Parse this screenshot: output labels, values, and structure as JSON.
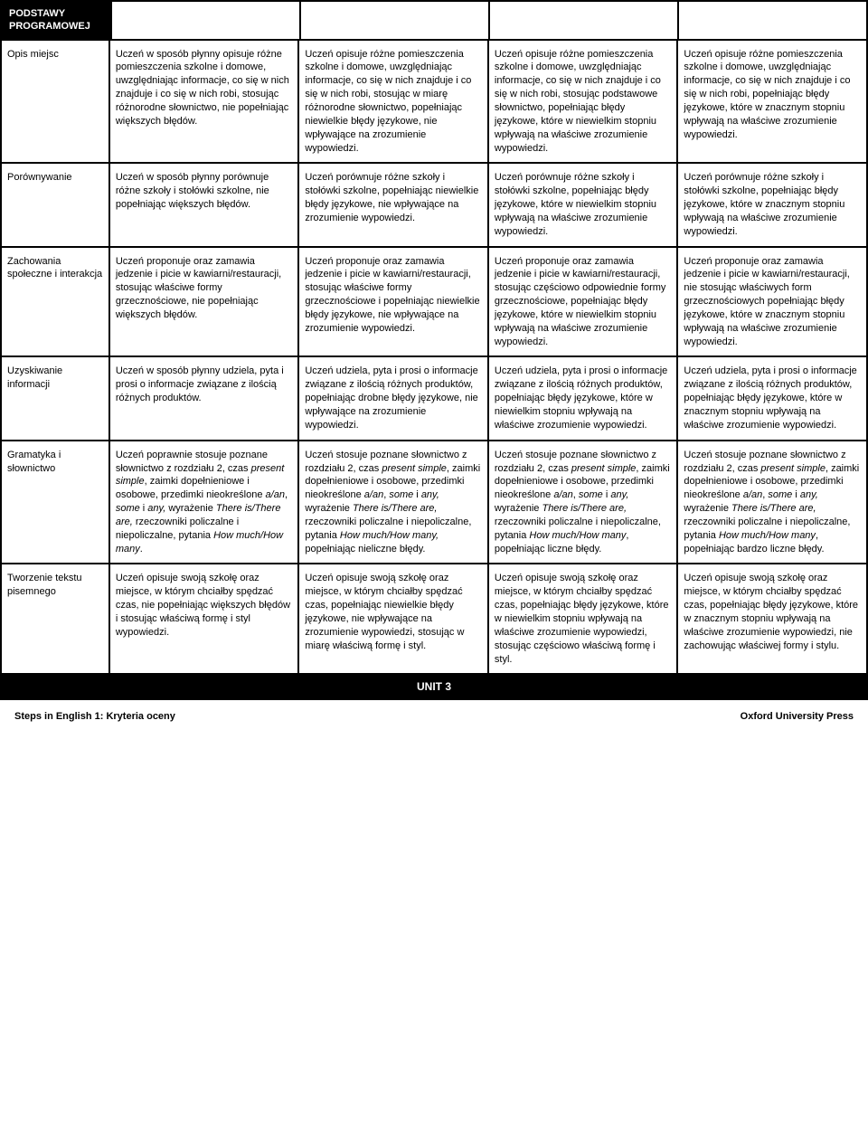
{
  "header": {
    "title_line1": "PODSTAWY",
    "title_line2": "PROGRAMOWEJ"
  },
  "rows": [
    {
      "label": "Opis miejsc",
      "cells": [
        "Uczeń w sposób płynny opisuje różne pomieszczenia szkolne i domowe, uwzględniając informacje, co się w nich znajduje i co się w nich robi, stosując różnorodne słownictwo, nie popełniając większych błędów.",
        "Uczeń opisuje różne pomieszczenia szkolne i domowe, uwzględniając informacje, co się w nich znajduje i co się w nich robi, stosując w miarę różnorodne słownictwo, popełniając niewielkie błędy językowe, nie wpływające na zrozumienie wypowiedzi.",
        "Uczeń opisuje różne pomieszczenia szkolne i domowe, uwzględniając informacje, co się w nich znajduje i co się w nich robi, stosując podstawowe słownictwo, popełniając błędy językowe, które w niewielkim stopniu wpływają na właściwe zrozumienie wypowiedzi.",
        "Uczeń opisuje różne pomieszczenia szkolne i domowe, uwzględniając informacje, co się w nich znajduje i co się w nich robi, popełniając błędy językowe, które w znacznym stopniu wpływają na właściwe zrozumienie wypowiedzi."
      ]
    },
    {
      "label": "Porównywanie",
      "cells": [
        "Uczeń w sposób płynny porównuje różne szkoły i stołówki szkolne, nie popełniając większych błędów.",
        "Uczeń porównuje różne szkoły i stołówki szkolne, popełniając niewielkie błędy językowe, nie wpływające na zrozumienie wypowiedzi.",
        "Uczeń porównuje różne szkoły i stołówki szkolne, popełniając błędy językowe, które w niewielkim stopniu wpływają na właściwe zrozumienie wypowiedzi.",
        "Uczeń porównuje różne szkoły i stołówki szkolne, popełniając błędy językowe, które w znacznym stopniu wpływają na właściwe zrozumienie wypowiedzi."
      ]
    },
    {
      "label": "Zachowania społeczne i interakcja",
      "cells": [
        "Uczeń proponuje oraz zamawia jedzenie i picie w kawiarni/restauracji, stosując właściwe formy grzecznościowe, nie popełniając większych błędów.",
        "Uczeń proponuje oraz zamawia jedzenie i picie w kawiarni/restauracji, stosując właściwe formy grzecznościowe i popełniając niewielkie błędy językowe, nie wpływające na zrozumienie wypowiedzi.",
        "Uczeń proponuje oraz zamawia jedzenie i picie w kawiarni/restauracji, stosując częściowo odpowiednie formy grzecznościowe, popełniając błędy językowe, które w niewielkim stopniu wpływają na właściwe zrozumienie wypowiedzi.",
        "Uczeń proponuje oraz zamawia jedzenie i picie w kawiarni/restauracji, nie stosując właściwych form grzecznościowych popełniając błędy językowe, które w znacznym stopniu wpływają na właściwe zrozumienie wypowiedzi."
      ]
    },
    {
      "label": "Uzyskiwanie informacji",
      "cells": [
        "Uczeń w sposób płynny udziela, pyta i prosi o informacje związane z ilością różnych produktów.",
        "Uczeń udziela, pyta i prosi o informacje związane z ilością różnych produktów, popełniając drobne błędy językowe, nie wpływające na zrozumienie wypowiedzi.",
        "Uczeń udziela, pyta i prosi o informacje związane z ilością różnych produktów, popełniając błędy językowe, które w niewielkim stopniu wpływają na właściwe zrozumienie wypowiedzi.",
        "Uczeń udziela, pyta i prosi o informacje związane z ilością różnych produktów, popełniając błędy językowe, które w znacznym stopniu wpływają na właściwe zrozumienie wypowiedzi."
      ]
    },
    {
      "label": "Gramatyka i słownictwo",
      "cells": [
        "Uczeń poprawnie stosuje poznane słownictwo z rozdziału 2, czas <i>present simple</i>, zaimki dopełnieniowe i osobowe, przedimki nieokreślone <i>a/an</i>, <i>some</i> i <i>any,</i> wyrażenie <i>There is/There are,</i> rzeczowniki policzalne i niepoliczalne, pytania <i>How much/How many</i>.",
        "Uczeń stosuje poznane słownictwo z rozdziału 2, czas <i>present simple</i>, zaimki dopełnieniowe i osobowe, przedimki nieokreślone <i>a/an</i>, <i>some</i> i <i>any,</i> wyrażenie <i>There is/There are,</i> rzeczowniki policzalne i niepoliczalne, pytania <i>How much/How many,</i> popełniając nieliczne błędy.",
        "Uczeń stosuje poznane słownictwo z rozdziału 2, czas <i>present simple</i>, zaimki dopełnieniowe i osobowe, przedimki nieokreślone <i>a/an</i>, <i>some</i> i <i>any,</i> wyrażenie <i>There is/There are,</i> rzeczowniki policzalne i niepoliczalne, pytania <i>How much/How many</i>, popełniając liczne błędy.",
        "Uczeń stosuje poznane słownictwo z rozdziału 2, czas <i>present simple</i>, zaimki dopełnieniowe i osobowe, przedimki nieokreślone <i>a/an</i>, <i>some</i> i <i>any,</i> wyrażenie <i>There is/There are,</i> rzeczowniki policzalne i niepoliczalne, pytania <i>How much/How many</i>, popełniając bardzo liczne błędy."
      ]
    },
    {
      "label": "Tworzenie tekstu pisemnego",
      "cells": [
        "Uczeń opisuje swoją szkołę oraz miejsce, w którym chciałby spędzać czas, nie popełniając większych błędów i stosując właściwą formę i styl wypowiedzi.",
        "Uczeń opisuje swoją szkołę oraz miejsce, w którym chciałby spędzać czas, popełniając niewielkie błędy językowe, nie wpływające na zrozumienie wypowiedzi, stosując w miarę właściwą formę i styl.",
        "Uczeń opisuje swoją szkołę oraz miejsce, w którym chciałby spędzać czas, popełniając błędy językowe, które w niewielkim stopniu wpływają na właściwe zrozumienie wypowiedzi, stosując częściowo właściwą formę i styl.",
        "Uczeń opisuje swoją szkołę oraz miejsce, w którym chciałby spędzać czas, popełniając błędy językowe, które w znacznym stopniu wpływają na właściwe zrozumienie wypowiedzi, nie zachowując właściwej formy i stylu."
      ]
    }
  ],
  "unit_bar": "UNIT 3",
  "footer": {
    "left": "Steps in English 1: Kryteria oceny",
    "right": "Oxford University Press"
  },
  "colors": {
    "black": "#000000",
    "white": "#ffffff"
  }
}
